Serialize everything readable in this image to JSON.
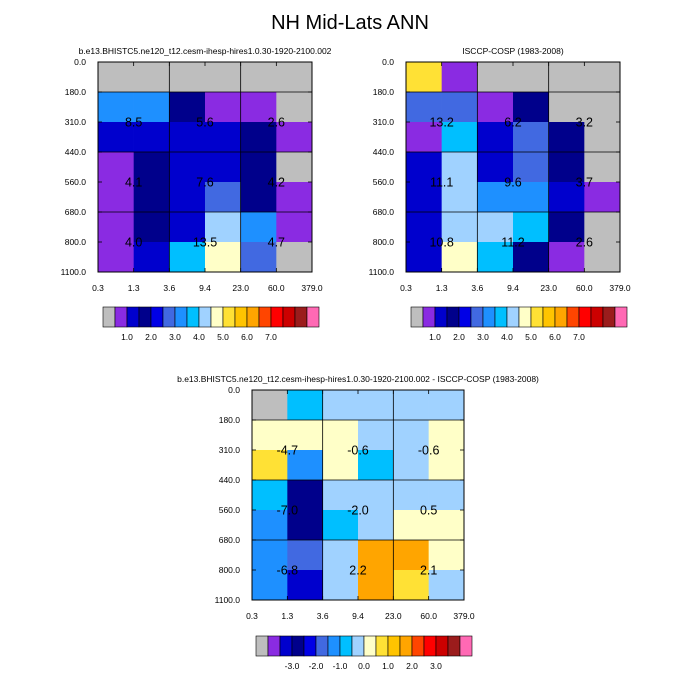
{
  "title": "NH Mid-Lats ANN",
  "colors": {
    "palette": [
      "#bebebe",
      "#8a2be2",
      "#0000cd",
      "#00008b",
      "#0000e6",
      "#4169e1",
      "#1e90ff",
      "#00bfff",
      "#a0d2ff",
      "#ffffc8",
      "#ffe135",
      "#ffc400",
      "#ffa500",
      "#ff4500",
      "#ff0000",
      "#cc0000",
      "#9b1c1c",
      "#ff69b4"
    ],
    "grid_line": "#000000",
    "missing": "#bebebe"
  },
  "colorbars": {
    "abs": {
      "labels": [
        "1.0",
        "2.0",
        "3.0",
        "4.0",
        "5.0",
        "6.0",
        "7.0"
      ],
      "label_after_box": [
        1,
        3,
        5,
        7,
        9,
        11,
        13
      ]
    },
    "diff": {
      "labels": [
        "-3.0",
        "-2.0",
        "-1.0",
        "0.0",
        "1.0",
        "2.0",
        "3.0"
      ],
      "label_after_box": [
        2,
        4,
        6,
        8,
        10,
        12,
        14
      ]
    }
  },
  "chart_data": [
    {
      "type": "heatmap",
      "title": "b.e13.BHISTC5.ne120_t12.cesm-ihesp-hires1.0.30-1920-2100.002",
      "x_tick_labels": [
        "0.3",
        "1.3",
        "3.6",
        "9.4",
        "23.0",
        "60.0",
        "379.0"
      ],
      "y_tick_labels": [
        "0.0",
        "180.0",
        "310.0",
        "440.0",
        "560.0",
        "680.0",
        "800.0",
        "1100.0"
      ],
      "colorbar": "abs",
      "cells": [
        [
          0,
          0,
          0,
          0,
          0,
          0
        ],
        [
          6,
          6,
          3,
          1,
          1,
          0
        ],
        [
          2,
          2,
          2,
          2,
          3,
          1
        ],
        [
          1,
          3,
          2,
          2,
          3,
          0
        ],
        [
          1,
          3,
          2,
          5,
          3,
          1
        ],
        [
          1,
          3,
          2,
          8,
          6,
          1
        ],
        [
          1,
          2,
          7,
          9,
          5,
          0
        ]
      ],
      "group_values": [
        [
          "8.5",
          "5.6",
          "2.6"
        ],
        [
          "4.1",
          "7.6",
          "4.2"
        ],
        [
          "4.0",
          "13.5",
          "4.7"
        ]
      ]
    },
    {
      "type": "heatmap",
      "title": "ISCCP-COSP (1983-2008)",
      "x_tick_labels": [
        "0.3",
        "1.3",
        "3.6",
        "9.4",
        "23.0",
        "60.0",
        "379.0"
      ],
      "y_tick_labels": [
        "0.0",
        "180.0",
        "310.0",
        "440.0",
        "560.0",
        "680.0",
        "800.0",
        "1100.0"
      ],
      "colorbar": "abs",
      "cells": [
        [
          10,
          1,
          0,
          0,
          0,
          0
        ],
        [
          5,
          5,
          1,
          3,
          0,
          0
        ],
        [
          1,
          7,
          2,
          5,
          3,
          0
        ],
        [
          2,
          8,
          2,
          5,
          3,
          0
        ],
        [
          2,
          8,
          6,
          6,
          2,
          1
        ],
        [
          2,
          8,
          8,
          7,
          3,
          0
        ],
        [
          2,
          9,
          7,
          3,
          1,
          0
        ]
      ],
      "group_values": [
        [
          "13.2",
          "6.2",
          "3.2"
        ],
        [
          "11.1",
          "9.6",
          "3.7"
        ],
        [
          "10.8",
          "11.2",
          "2.6"
        ]
      ]
    },
    {
      "type": "heatmap",
      "title": "b.e13.BHISTC5.ne120_t12.cesm-ihesp-hires1.0.30-1920-2100.002 - ISCCP-COSP (1983-2008)",
      "x_tick_labels": [
        "0.3",
        "1.3",
        "3.6",
        "9.4",
        "23.0",
        "60.0",
        "379.0"
      ],
      "y_tick_labels": [
        "0.0",
        "180.0",
        "310.0",
        "440.0",
        "560.0",
        "680.0",
        "800.0",
        "1100.0"
      ],
      "colorbar": "diff",
      "cells": [
        [
          0,
          7,
          8,
          8,
          8,
          8
        ],
        [
          9,
          9,
          9,
          8,
          8,
          9
        ],
        [
          10,
          6,
          9,
          7,
          8,
          9
        ],
        [
          7,
          3,
          8,
          8,
          8,
          8
        ],
        [
          6,
          3,
          7,
          8,
          9,
          9
        ],
        [
          6,
          5,
          8,
          12,
          12,
          9
        ],
        [
          6,
          2,
          8,
          12,
          10,
          8
        ]
      ],
      "group_values": [
        [
          "-4.7",
          "-0.6",
          "-0.6"
        ],
        [
          "-7.0",
          "-2.0",
          "0.5"
        ],
        [
          "-6.8",
          "2.2",
          "2.1"
        ]
      ]
    }
  ]
}
